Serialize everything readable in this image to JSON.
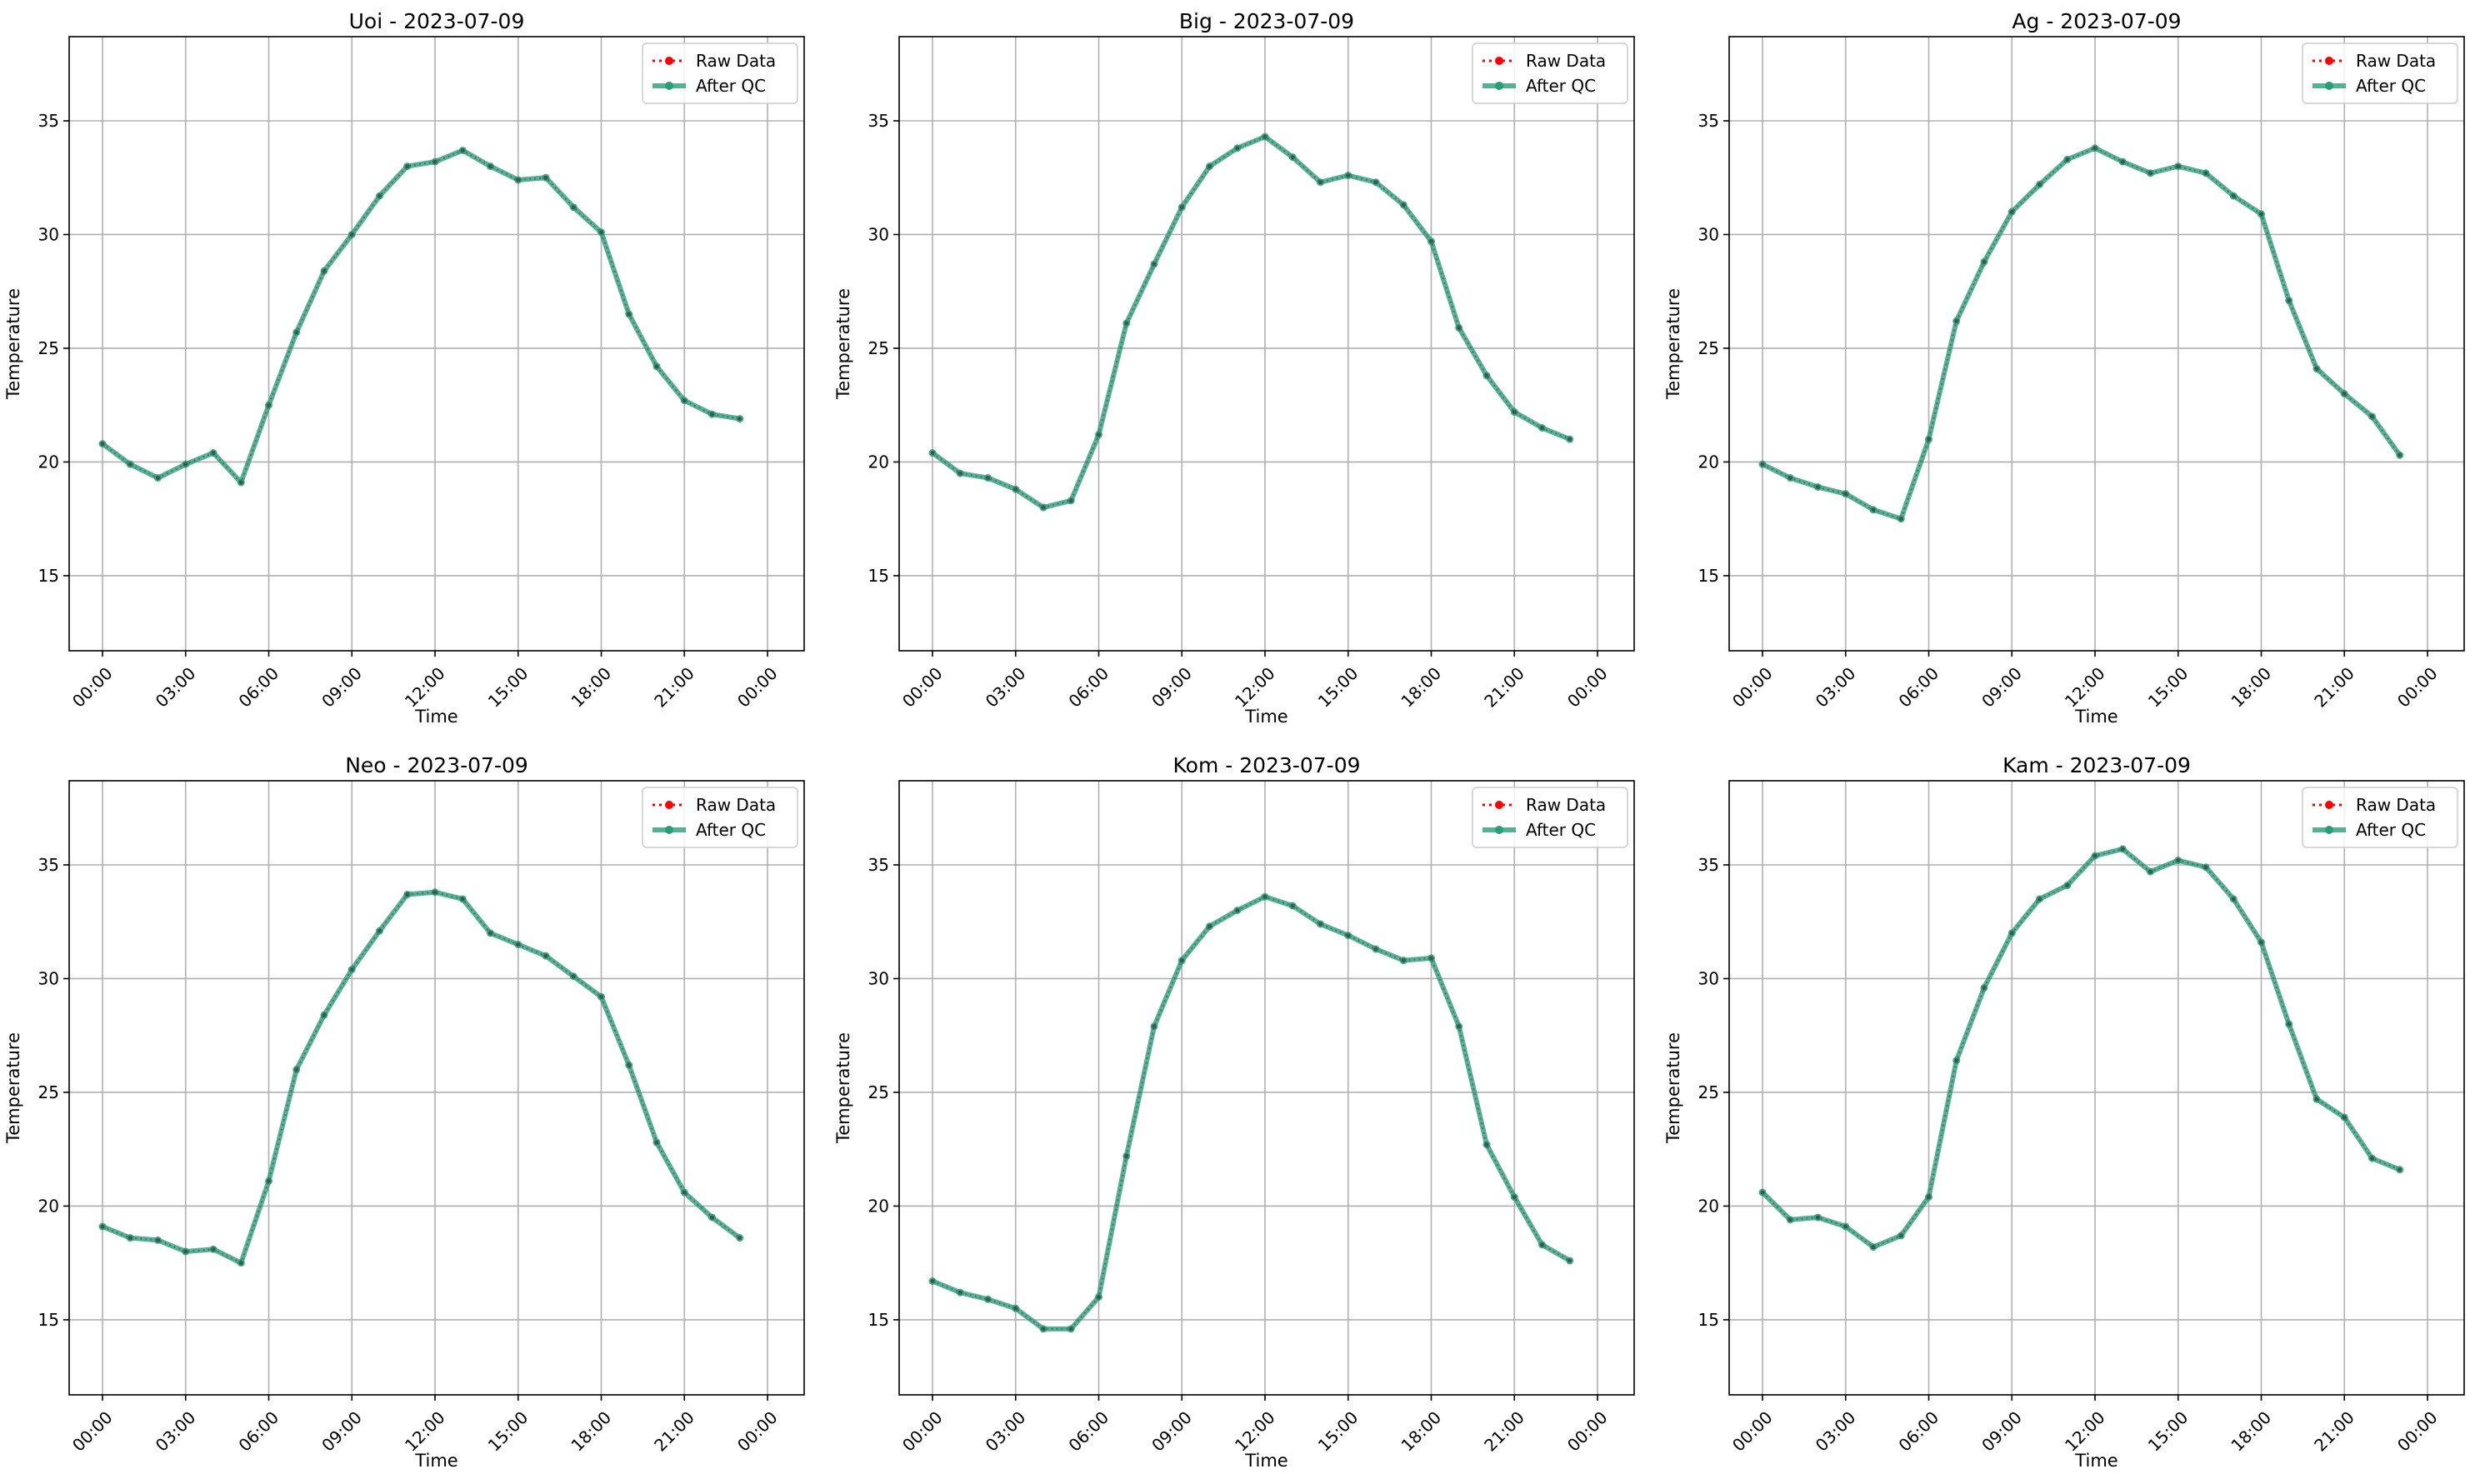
{
  "chart_data": [
    {
      "type": "line",
      "title": "Uoi - 2023-07-09",
      "xlabel": "Time",
      "ylabel": "Temperature",
      "ylim": [
        11.7,
        38.7
      ],
      "yticks": [
        15,
        20,
        25,
        30,
        35
      ],
      "xticks": [
        "00:00",
        "03:00",
        "06:00",
        "09:00",
        "12:00",
        "15:00",
        "18:00",
        "21:00",
        "00:00"
      ],
      "grid": true,
      "legend": "top-right",
      "series": [
        {
          "name": "Raw Data",
          "color": "#ff0000",
          "style": "dotted",
          "values": [
            20.8,
            19.9,
            19.3,
            19.9,
            20.4,
            19.1,
            22.5,
            25.7,
            28.4,
            30.0,
            31.7,
            33.0,
            33.2,
            33.7,
            33.0,
            32.4,
            32.5,
            31.2,
            30.1,
            26.5,
            24.2,
            22.7,
            22.1,
            21.9
          ]
        },
        {
          "name": "After QC",
          "color": "#2a9d78",
          "style": "solid",
          "values": [
            20.8,
            19.9,
            19.3,
            19.9,
            20.4,
            19.1,
            22.5,
            25.7,
            28.4,
            30.0,
            31.7,
            33.0,
            33.2,
            33.7,
            33.0,
            32.4,
            32.5,
            31.2,
            30.1,
            26.5,
            24.2,
            22.7,
            22.1,
            21.9
          ]
        }
      ]
    },
    {
      "type": "line",
      "title": "Big - 2023-07-09",
      "xlabel": "Time",
      "ylabel": "Temperature",
      "ylim": [
        11.7,
        38.7
      ],
      "yticks": [
        15,
        20,
        25,
        30,
        35
      ],
      "xticks": [
        "00:00",
        "03:00",
        "06:00",
        "09:00",
        "12:00",
        "15:00",
        "18:00",
        "21:00",
        "00:00"
      ],
      "grid": true,
      "legend": "top-right",
      "series": [
        {
          "name": "Raw Data",
          "color": "#ff0000",
          "style": "dotted",
          "values": [
            20.4,
            19.5,
            19.3,
            18.8,
            18.0,
            18.3,
            21.2,
            26.1,
            28.7,
            31.2,
            33.0,
            33.8,
            34.3,
            33.4,
            32.3,
            32.6,
            32.3,
            31.3,
            29.7,
            25.9,
            23.8,
            22.2,
            21.5,
            21.0
          ]
        },
        {
          "name": "After QC",
          "color": "#2a9d78",
          "style": "solid",
          "values": [
            20.4,
            19.5,
            19.3,
            18.8,
            18.0,
            18.3,
            21.2,
            26.1,
            28.7,
            31.2,
            33.0,
            33.8,
            34.3,
            33.4,
            32.3,
            32.6,
            32.3,
            31.3,
            29.7,
            25.9,
            23.8,
            22.2,
            21.5,
            21.0
          ]
        }
      ]
    },
    {
      "type": "line",
      "title": "Ag - 2023-07-09",
      "xlabel": "Time",
      "ylabel": "Temperature",
      "ylim": [
        11.7,
        38.7
      ],
      "yticks": [
        15,
        20,
        25,
        30,
        35
      ],
      "xticks": [
        "00:00",
        "03:00",
        "06:00",
        "09:00",
        "12:00",
        "15:00",
        "18:00",
        "21:00",
        "00:00"
      ],
      "grid": true,
      "legend": "top-right",
      "series": [
        {
          "name": "Raw Data",
          "color": "#ff0000",
          "style": "dotted",
          "values": [
            19.9,
            19.3,
            18.9,
            18.6,
            17.9,
            17.5,
            21.0,
            26.2,
            28.8,
            31.0,
            32.2,
            33.3,
            33.8,
            33.2,
            32.7,
            33.0,
            32.7,
            31.7,
            30.9,
            27.1,
            24.1,
            23.0,
            22.0,
            20.3
          ]
        },
        {
          "name": "After QC",
          "color": "#2a9d78",
          "style": "solid",
          "values": [
            19.9,
            19.3,
            18.9,
            18.6,
            17.9,
            17.5,
            21.0,
            26.2,
            28.8,
            31.0,
            32.2,
            33.3,
            33.8,
            33.2,
            32.7,
            33.0,
            32.7,
            31.7,
            30.9,
            27.1,
            24.1,
            23.0,
            22.0,
            20.3
          ]
        }
      ]
    },
    {
      "type": "line",
      "title": "Neo - 2023-07-09",
      "xlabel": "Time",
      "ylabel": "Temperature",
      "ylim": [
        11.7,
        38.7
      ],
      "yticks": [
        15,
        20,
        25,
        30,
        35
      ],
      "xticks": [
        "00:00",
        "03:00",
        "06:00",
        "09:00",
        "12:00",
        "15:00",
        "18:00",
        "21:00",
        "00:00"
      ],
      "grid": true,
      "legend": "top-right",
      "series": [
        {
          "name": "Raw Data",
          "color": "#ff0000",
          "style": "dotted",
          "values": [
            19.1,
            18.6,
            18.5,
            18.0,
            18.1,
            17.5,
            21.1,
            26.0,
            28.4,
            30.4,
            32.1,
            33.7,
            33.8,
            33.5,
            32.0,
            31.5,
            31.0,
            30.1,
            29.2,
            26.2,
            22.8,
            20.6,
            19.5,
            18.6
          ]
        },
        {
          "name": "After QC",
          "color": "#2a9d78",
          "style": "solid",
          "values": [
            19.1,
            18.6,
            18.5,
            18.0,
            18.1,
            17.5,
            21.1,
            26.0,
            28.4,
            30.4,
            32.1,
            33.7,
            33.8,
            33.5,
            32.0,
            31.5,
            31.0,
            30.1,
            29.2,
            26.2,
            22.8,
            20.6,
            19.5,
            18.6
          ]
        }
      ]
    },
    {
      "type": "line",
      "title": "Kom - 2023-07-09",
      "xlabel": "Time",
      "ylabel": "Temperature",
      "ylim": [
        11.7,
        38.7
      ],
      "yticks": [
        15,
        20,
        25,
        30,
        35
      ],
      "xticks": [
        "00:00",
        "03:00",
        "06:00",
        "09:00",
        "12:00",
        "15:00",
        "18:00",
        "21:00",
        "00:00"
      ],
      "grid": true,
      "legend": "top-right",
      "series": [
        {
          "name": "Raw Data",
          "color": "#ff0000",
          "style": "dotted",
          "values": [
            16.7,
            16.2,
            15.9,
            15.5,
            14.6,
            14.6,
            16.0,
            22.2,
            27.9,
            30.8,
            32.3,
            33.0,
            33.6,
            33.2,
            32.4,
            31.9,
            31.3,
            30.8,
            30.9,
            27.9,
            22.7,
            20.4,
            18.3,
            17.6
          ]
        },
        {
          "name": "After QC",
          "color": "#2a9d78",
          "style": "solid",
          "values": [
            16.7,
            16.2,
            15.9,
            15.5,
            14.6,
            14.6,
            16.0,
            22.2,
            27.9,
            30.8,
            32.3,
            33.0,
            33.6,
            33.2,
            32.4,
            31.9,
            31.3,
            30.8,
            30.9,
            27.9,
            22.7,
            20.4,
            18.3,
            17.6
          ]
        }
      ]
    },
    {
      "type": "line",
      "title": "Kam - 2023-07-09",
      "xlabel": "Time",
      "ylabel": "Temperature",
      "ylim": [
        11.7,
        38.7
      ],
      "yticks": [
        15,
        20,
        25,
        30,
        35
      ],
      "xticks": [
        "00:00",
        "03:00",
        "06:00",
        "09:00",
        "12:00",
        "15:00",
        "18:00",
        "21:00",
        "00:00"
      ],
      "grid": true,
      "legend": "top-right",
      "series": [
        {
          "name": "Raw Data",
          "color": "#ff0000",
          "style": "dotted",
          "values": [
            20.6,
            19.4,
            19.5,
            19.1,
            18.2,
            18.7,
            20.4,
            26.4,
            29.6,
            32.0,
            33.5,
            34.1,
            35.4,
            35.7,
            34.7,
            35.2,
            34.9,
            33.5,
            31.6,
            28.0,
            24.7,
            23.9,
            22.1,
            21.6
          ]
        },
        {
          "name": "After QC",
          "color": "#2a9d78",
          "style": "solid",
          "values": [
            20.6,
            19.4,
            19.5,
            19.1,
            18.2,
            18.7,
            20.4,
            26.4,
            29.6,
            32.0,
            33.5,
            34.1,
            35.4,
            35.7,
            34.7,
            35.2,
            34.9,
            33.5,
            31.6,
            28.0,
            24.7,
            23.9,
            22.1,
            21.6
          ]
        }
      ]
    }
  ]
}
